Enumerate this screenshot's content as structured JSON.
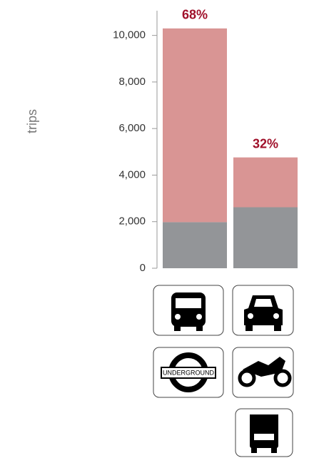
{
  "chart_data": {
    "type": "stacked_bar",
    "ylabel": "trips",
    "categories": [
      null,
      null
    ],
    "series": [
      {
        "color": "#939598",
        "values": [
          1980,
          2620
        ]
      },
      {
        "color": "#d99594",
        "values": [
          8320,
          2140
        ]
      }
    ],
    "annotations": [
      "68%",
      "32%"
    ],
    "annotation_color": "#a0102a",
    "ylim": [
      0,
      11000
    ],
    "yticks": [
      0,
      {
        "value": 2000,
        "label": "2,000"
      },
      {
        "value": 4000,
        "label": "4,000"
      },
      {
        "value": 6000,
        "label": "6,000"
      },
      {
        "value": 8000,
        "label": "8,000"
      },
      {
        "value": 10000,
        "label": "10,000"
      }
    ],
    "icon_text": "UNDERGROUND"
  }
}
